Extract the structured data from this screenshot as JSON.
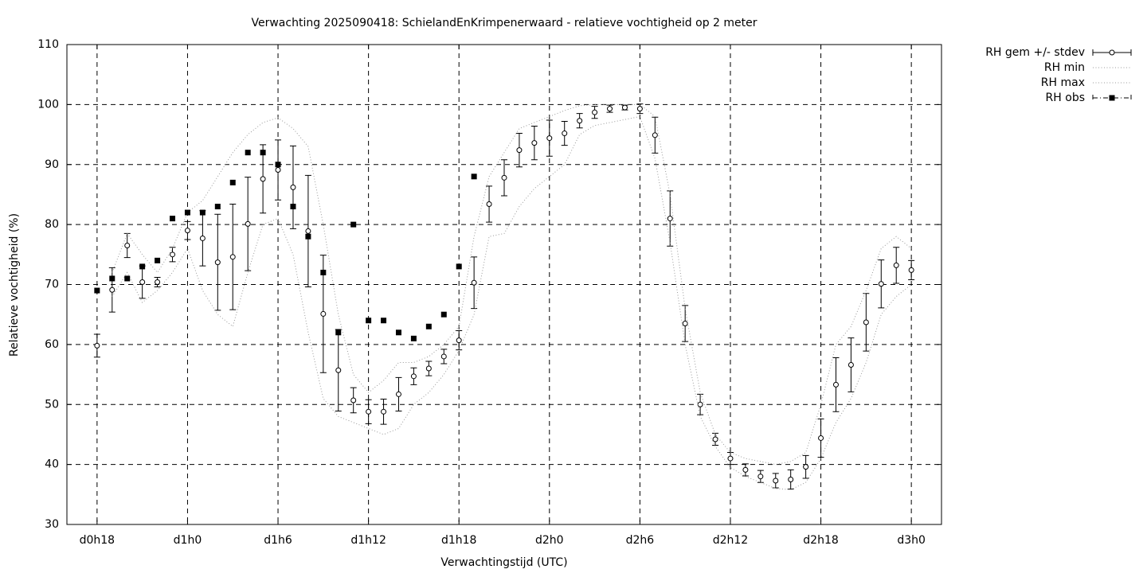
{
  "chart_data": {
    "type": "errorbar-line",
    "title": "Verwachting 2025090418: SchielandEnKrimpenerwaard - relatieve vochtigheid op 2 meter",
    "x_label": "Verwachtingstijd (UTC)",
    "y_label": "Relatieve vochtigheid (%)",
    "categories": [
      "d0h18",
      null,
      null,
      null,
      null,
      null,
      "d1h0",
      null,
      null,
      null,
      null,
      null,
      "d1h6",
      null,
      null,
      null,
      null,
      null,
      "d1h12",
      null,
      null,
      null,
      null,
      null,
      "d1h18",
      null,
      null,
      null,
      null,
      null,
      "d2h0",
      null,
      null,
      null,
      null,
      null,
      "d2h6",
      null,
      null,
      null,
      null,
      null,
      "d2h12",
      null,
      null,
      null,
      null,
      null,
      "d2h18",
      null,
      null,
      null,
      null,
      null,
      "d3h0"
    ],
    "ylim": [
      30,
      110
    ],
    "yticks": [
      30,
      40,
      50,
      60,
      70,
      80,
      90,
      100,
      110
    ],
    "grid": true,
    "legend": "outside-top-right",
    "series": [
      {
        "name": "RH gem +/- stdev",
        "color": "#000000",
        "style": "errorbar",
        "values": [
          59.8,
          69.1,
          76.5,
          70.4,
          70.4,
          75.0,
          79.0,
          77.7,
          73.7,
          74.6,
          80.1,
          87.6,
          89.1,
          86.2,
          78.9,
          65.1,
          55.7,
          50.7,
          48.8,
          48.8,
          51.7,
          54.7,
          56.0,
          58.0,
          60.7,
          70.3,
          83.4,
          87.8,
          92.4,
          93.6,
          94.4,
          95.2,
          97.3,
          98.7,
          99.3,
          99.5,
          99.3,
          94.9,
          81.0,
          63.5,
          50.0,
          44.2,
          41.0,
          39.1,
          38.0,
          37.3,
          37.5,
          39.6,
          44.4,
          53.3,
          56.6,
          63.7,
          70.1,
          73.2,
          72.4
        ],
        "errors": [
          1.9,
          3.7,
          2.0,
          2.7,
          0.8,
          1.2,
          1.5,
          4.6,
          8.0,
          8.8,
          7.8,
          5.7,
          5.0,
          6.9,
          9.3,
          9.8,
          6.8,
          2.1,
          2.0,
          2.1,
          2.8,
          1.4,
          1.2,
          1.2,
          1.6,
          4.3,
          3.0,
          3.0,
          2.8,
          2.8,
          3.0,
          2.0,
          1.2,
          1.0,
          0.6,
          0.4,
          0.8,
          3.0,
          4.6,
          3.0,
          1.7,
          1.0,
          1.0,
          1.0,
          1.0,
          1.2,
          1.6,
          1.9,
          3.2,
          4.5,
          4.5,
          4.8,
          4.0,
          3.0,
          1.6
        ]
      },
      {
        "name": "RH min",
        "color": "#999999",
        "style": "dotted",
        "values": [
          null,
          68,
          72,
          67,
          69,
          72,
          76,
          69,
          65,
          63,
          72,
          80,
          81,
          75,
          62,
          51,
          48,
          47,
          46,
          45,
          46,
          50,
          52,
          55,
          59,
          65,
          78,
          78.5,
          83,
          86,
          88,
          90,
          95,
          96.5,
          97,
          97.5,
          98,
          91,
          77,
          60,
          48,
          43,
          39.5,
          38,
          37,
          36,
          35.8,
          37,
          41,
          47,
          51,
          57,
          65,
          68,
          70
        ]
      },
      {
        "name": "RH max",
        "color": "#999999",
        "style": "dotted",
        "values": [
          null,
          72,
          78.5,
          75,
          72,
          76,
          82,
          84,
          88,
          92,
          95,
          97,
          97.8,
          96,
          93,
          80,
          65,
          55,
          52,
          54,
          57,
          57,
          58,
          60,
          63,
          78,
          88,
          92,
          96,
          97,
          98,
          99,
          99.8,
          100,
          100,
          100,
          100,
          98,
          85,
          66,
          52,
          45,
          42,
          41,
          40.5,
          40,
          40.5,
          42,
          50,
          60,
          63,
          69,
          76,
          78,
          76
        ]
      },
      {
        "name": "RH obs",
        "color": "#000000",
        "style": "points",
        "values": [
          69,
          71,
          71,
          73,
          74,
          81,
          82,
          82,
          83,
          87,
          92,
          92,
          90,
          83,
          78,
          72,
          62,
          80,
          64,
          64,
          62,
          61,
          63,
          65,
          73,
          88,
          null,
          null,
          null,
          null,
          null,
          null,
          null,
          null,
          null,
          null,
          null,
          null,
          null,
          null,
          null,
          null,
          null,
          null,
          null,
          null,
          null,
          null,
          null,
          null,
          null,
          null,
          null,
          null,
          null
        ]
      }
    ]
  }
}
